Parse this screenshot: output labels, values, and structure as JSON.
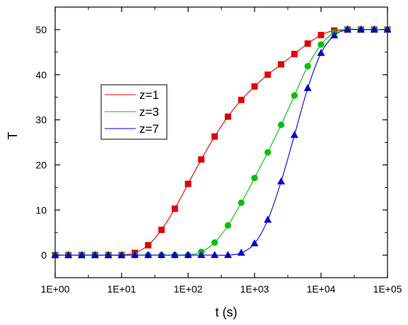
{
  "chart_data": {
    "type": "line",
    "title": "",
    "xlabel": "t (s)",
    "ylabel": "T",
    "x_scale": "log",
    "xlim": [
      1,
      100000
    ],
    "ylim": [
      -5,
      55
    ],
    "x_ticks": [
      {
        "value": 1,
        "label": "1E+00"
      },
      {
        "value": 10,
        "label": "1E+01"
      },
      {
        "value": 100,
        "label": "1E+02"
      },
      {
        "value": 1000,
        "label": "1E+03"
      },
      {
        "value": 10000,
        "label": "1E+04"
      },
      {
        "value": 100000,
        "label": "1E+05"
      }
    ],
    "y_ticks": [
      0,
      10,
      20,
      30,
      40,
      50
    ],
    "grid": false,
    "legend_position": "left-center",
    "x": [
      1,
      1.58,
      2.51,
      3.98,
      6.31,
      10,
      15.8,
      25.1,
      39.8,
      63.1,
      100,
      158,
      251,
      398,
      631,
      1000,
      1580,
      2510,
      3980,
      6310,
      10000,
      15800,
      25100,
      39800,
      63100,
      100000
    ],
    "series": [
      {
        "name": "z=1",
        "color": "#e00000",
        "marker": "square",
        "values": [
          0,
          0,
          0,
          0,
          0,
          0,
          0.5,
          2.2,
          5.6,
          10.3,
          15.8,
          21.2,
          26.3,
          30.7,
          34.4,
          37.4,
          40.0,
          42.3,
          44.6,
          46.9,
          48.8,
          49.8,
          50,
          50,
          50,
          50
        ]
      },
      {
        "name": "z=3",
        "color": "#00c000",
        "marker": "circle",
        "values": [
          0,
          0,
          0,
          0,
          0,
          0,
          0,
          0,
          0,
          0,
          0,
          0.7,
          2.8,
          6.6,
          11.6,
          17.1,
          22.8,
          28.9,
          35.4,
          41.9,
          46.7,
          49.3,
          50,
          50,
          50,
          50
        ]
      },
      {
        "name": "z=7",
        "color": "#0000cc",
        "marker": "triangle",
        "values": [
          0,
          0,
          0,
          0,
          0,
          0,
          0,
          0,
          0,
          0,
          0,
          0,
          0,
          0,
          0.5,
          2.6,
          7.8,
          16.3,
          26.6,
          37.0,
          44.8,
          48.7,
          50,
          50,
          50,
          50
        ]
      }
    ]
  }
}
